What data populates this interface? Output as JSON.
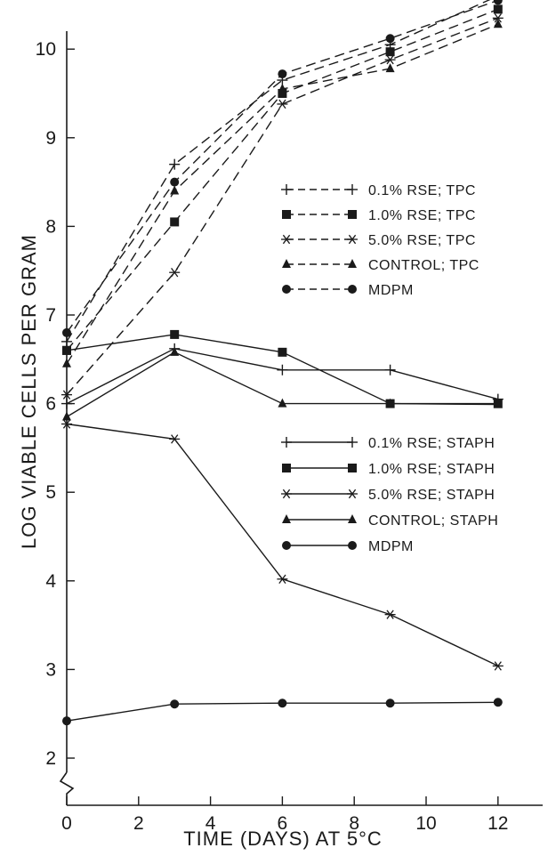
{
  "chart_data": {
    "type": "line",
    "title": "",
    "xlabel": "TIME (DAYS) AT 5°C",
    "ylabel": "LOG VIABLE CELLS PER GRAM",
    "xlim": [
      0,
      14
    ],
    "ylim": [
      1.5,
      10.5
    ],
    "y_axis_break": true,
    "grid": false,
    "x_ticks": [
      "0",
      "2",
      "4",
      "6",
      "8",
      "10",
      "12"
    ],
    "y_ticks": [
      "2",
      "3",
      "4",
      "5",
      "6",
      "7",
      "8",
      "9",
      "10"
    ],
    "legend_groups": [
      {
        "placement": "center-right-upper",
        "line_style": "dashed"
      },
      {
        "placement": "center-right-lower",
        "line_style": "solid"
      }
    ],
    "series": [
      {
        "name": "0.1% RSE; TPC",
        "marker": "plus",
        "dash": true,
        "x": [
          0,
          3,
          6,
          9,
          12
        ],
        "y": [
          6.7,
          8.7,
          9.65,
          10.05,
          10.6
        ]
      },
      {
        "name": "1.0% RSE; TPC",
        "marker": "square",
        "dash": true,
        "x": [
          0,
          3,
          6,
          9,
          12
        ],
        "y": [
          6.6,
          8.05,
          9.5,
          9.97,
          10.45
        ]
      },
      {
        "name": "5.0% RSE; TPC",
        "marker": "star",
        "dash": true,
        "x": [
          0,
          3,
          6,
          9,
          12
        ],
        "y": [
          6.1,
          7.48,
          9.38,
          9.88,
          10.35
        ]
      },
      {
        "name": "CONTROL; TPC",
        "marker": "triangle",
        "dash": true,
        "x": [
          0,
          3,
          6,
          9,
          12
        ],
        "y": [
          6.45,
          8.4,
          9.55,
          9.78,
          10.28
        ]
      },
      {
        "name": "MDPM",
        "marker": "circle",
        "dash": true,
        "x": [
          0,
          3,
          6,
          9,
          12
        ],
        "y": [
          6.8,
          8.5,
          9.72,
          10.12,
          10.55
        ]
      },
      {
        "name": "0.1% RSE; STAPH",
        "marker": "plus",
        "dash": false,
        "x": [
          0,
          3,
          6,
          9,
          12
        ],
        "y": [
          6.0,
          6.62,
          6.38,
          6.38,
          6.05
        ]
      },
      {
        "name": "1.0% RSE; STAPH",
        "marker": "square",
        "dash": false,
        "x": [
          0,
          3,
          6,
          9,
          12
        ],
        "y": [
          6.6,
          6.78,
          6.58,
          6.0,
          6.0
        ]
      },
      {
        "name": "5.0% RSE; STAPH",
        "marker": "star",
        "dash": false,
        "x": [
          0,
          3,
          6,
          9,
          12
        ],
        "y": [
          5.77,
          5.6,
          4.02,
          3.62,
          3.04
        ]
      },
      {
        "name": "CONTROL; STAPH",
        "marker": "triangle",
        "dash": false,
        "x": [
          0,
          3,
          6,
          9,
          12
        ],
        "y": [
          5.85,
          6.58,
          6.0,
          6.0,
          5.99
        ]
      },
      {
        "name": "MDPM",
        "marker": "circle",
        "dash": false,
        "x": [
          0,
          3,
          6,
          9,
          12
        ],
        "y": [
          2.42,
          2.61,
          2.62,
          2.62,
          2.63
        ]
      }
    ],
    "legend_labels": {
      "tpc": [
        "0.1% RSE; TPC",
        "1.0% RSE; TPC",
        "5.0% RSE; TPC",
        "CONTROL; TPC",
        "MDPM"
      ],
      "staph": [
        "0.1% RSE; STAPH",
        "1.0% RSE; STAPH",
        "5.0% RSE; STAPH",
        "CONTROL; STAPH",
        "MDPM"
      ]
    },
    "colors": {
      "ink": "#1a1a1a",
      "background": "#ffffff"
    }
  }
}
